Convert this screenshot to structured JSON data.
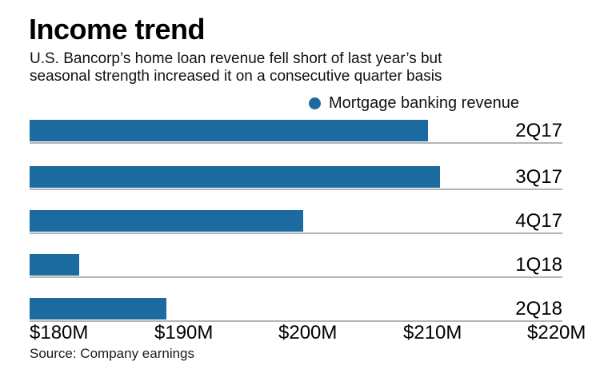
{
  "header": {
    "title": "Income trend",
    "subtitle_line1": "U.S. Bancorp’s home loan revenue fell short of last year’s but",
    "subtitle_line2": "seasonal strength increased it on a consecutive quarter basis"
  },
  "legend": {
    "label": "Mortgage banking revenue"
  },
  "source": {
    "text": "Source: Company earnings"
  },
  "colors": {
    "bar_blue": "#1c6ba0",
    "gridline_gray": "#b5b5b5",
    "text_black": "#000000"
  },
  "chart_data": {
    "type": "bar",
    "orientation": "horizontal",
    "title": "Income trend",
    "subtitle": "U.S. Bancorp’s home loan revenue fell short of last year’s but seasonal strength increased it on a consecutive quarter basis",
    "categories": [
      "2Q17",
      "3Q17",
      "4Q17",
      "1Q18",
      "2Q18"
    ],
    "series": [
      {
        "name": "Mortgage banking revenue",
        "values": [
          212,
          213,
          202,
          184,
          191
        ]
      }
    ],
    "unit": "USD millions",
    "xlabel": "",
    "ylabel": "",
    "xlim": [
      180,
      222.8
    ],
    "ticks": [
      {
        "value": 180,
        "label": "$180M"
      },
      {
        "value": 190,
        "label": "$190M"
      },
      {
        "value": 200,
        "label": "$200M"
      },
      {
        "value": 210,
        "label": "$210M"
      },
      {
        "value": 220,
        "label": "$220M"
      }
    ],
    "legend_position": "top-right",
    "grid": "row-underlines",
    "annotations": []
  }
}
